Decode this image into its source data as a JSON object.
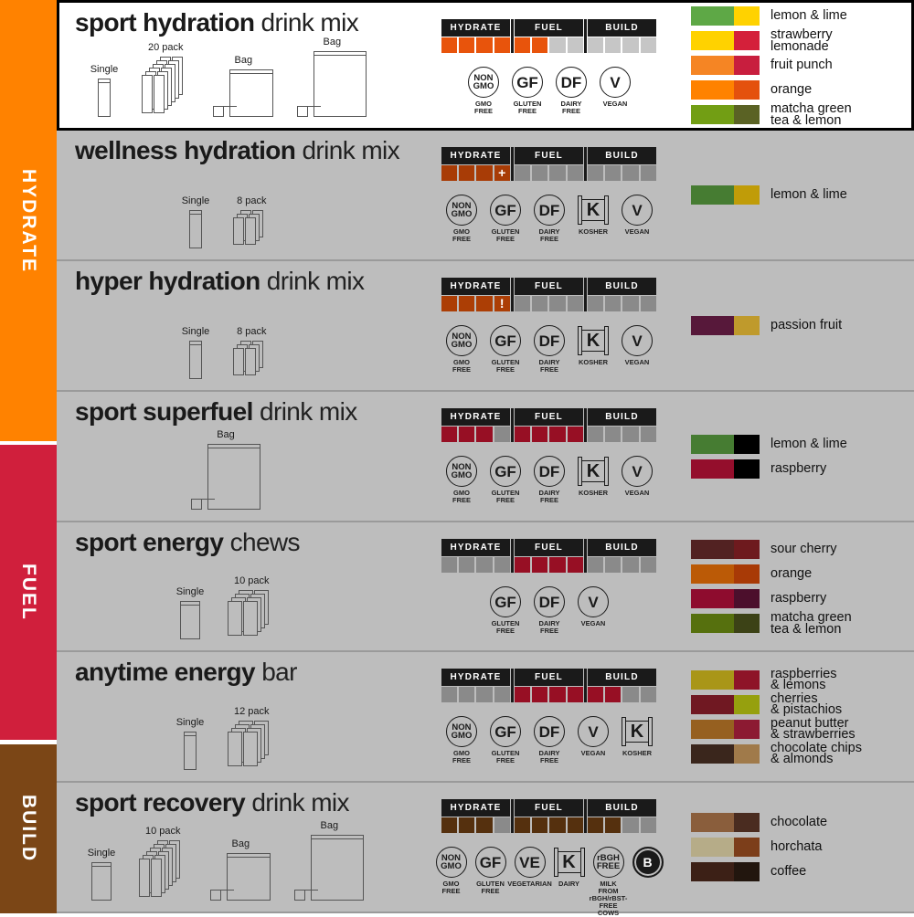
{
  "sidebar": [
    {
      "label": "HYDRATE",
      "color": "#ff8200"
    },
    {
      "label": "FUEL",
      "color": "#d01f3c"
    },
    {
      "label": "BUILD",
      "color": "#7b4616"
    }
  ],
  "meter_labels": [
    "HYDRATE",
    "FUEL",
    "BUILD"
  ],
  "badge_glyphs": {
    "nongmo": "NON\nGMO",
    "gf": "GF",
    "df": "DF",
    "v": "V",
    "k": "K",
    "ve": "VE",
    "rbgh": "rBGH\nFREE",
    "bcorp": "B"
  },
  "products": [
    {
      "bold": "sport hydration",
      "light": " drink mix",
      "highlighted": true,
      "color": "#e8540c",
      "off": "#c6c6c6",
      "meter": [
        [
          "on",
          "on",
          "on",
          "on"
        ],
        [
          "on",
          "on",
          "off",
          "off"
        ],
        [
          "off",
          "off",
          "off",
          "off"
        ]
      ],
      "packages": [
        {
          "label": "Single",
          "kind": "single"
        },
        {
          "label": "20 pack",
          "kind": "pack20"
        },
        {
          "label": "Bag",
          "kind": "bag-small"
        },
        {
          "label": "Bag",
          "kind": "bag-large"
        }
      ],
      "badges": [
        {
          "type": "nongmo",
          "label": "GMO\nFREE"
        },
        {
          "type": "gf",
          "label": "GLUTEN\nFREE"
        },
        {
          "type": "df",
          "label": "DAIRY\nFREE"
        },
        {
          "type": "v",
          "label": "VEGAN"
        }
      ],
      "flavors": [
        {
          "name": "lemon & lime",
          "colors": [
            "#5ea846",
            "#ffd200"
          ]
        },
        {
          "name": "strawberry\nlemonade",
          "colors": [
            "#ffd200",
            "#d4203a"
          ]
        },
        {
          "name": "fruit punch",
          "colors": [
            "#f58524",
            "#c81e3e"
          ]
        },
        {
          "name": "orange",
          "colors": [
            "#ff8200",
            "#e4510d"
          ]
        },
        {
          "name": "matcha green\ntea & lemon",
          "colors": [
            "#729e14",
            "#5a6224"
          ]
        }
      ]
    },
    {
      "bold": "wellness hydration",
      "light": " drink mix",
      "color": "#a83c06",
      "off": "#8a8a8a",
      "meter": [
        [
          "on",
          "on",
          "on",
          "plus"
        ],
        [
          "off",
          "off",
          "off",
          "off"
        ],
        [
          "off",
          "off",
          "off",
          "off"
        ]
      ],
      "packages": [
        {
          "label": "Single",
          "kind": "single"
        },
        {
          "label": "8 pack",
          "kind": "pack8"
        }
      ],
      "badges": [
        {
          "type": "nongmo",
          "label": "GMO\nFREE"
        },
        {
          "type": "gf",
          "label": "GLUTEN\nFREE"
        },
        {
          "type": "df",
          "label": "DAIRY\nFREE"
        },
        {
          "type": "k",
          "label": "KOSHER"
        },
        {
          "type": "v",
          "label": "VEGAN"
        }
      ],
      "flavors": [
        {
          "name": "lemon & lime",
          "colors": [
            "#467c32",
            "#c09c08"
          ]
        }
      ]
    },
    {
      "bold": "hyper hydration",
      "light": " drink mix",
      "color": "#ac3e05",
      "off": "#8a8a8a",
      "meter": [
        [
          "on",
          "on",
          "on",
          "bang"
        ],
        [
          "off",
          "off",
          "off",
          "off"
        ],
        [
          "off",
          "off",
          "off",
          "off"
        ]
      ],
      "packages": [
        {
          "label": "Single",
          "kind": "single"
        },
        {
          "label": "8 pack",
          "kind": "pack8"
        }
      ],
      "badges": [
        {
          "type": "nongmo",
          "label": "GMO\nFREE"
        },
        {
          "type": "gf",
          "label": "GLUTEN\nFREE"
        },
        {
          "type": "df",
          "label": "DAIRY\nFREE"
        },
        {
          "type": "k",
          "label": "KOSHER"
        },
        {
          "type": "v",
          "label": "VEGAN"
        }
      ],
      "flavors": [
        {
          "name": "passion fruit",
          "colors": [
            "#57183a",
            "#bf9a2c"
          ]
        }
      ]
    },
    {
      "bold": "sport superfuel",
      "light": " drink mix",
      "color": "#970f24",
      "off": "#8a8a8a",
      "meter": [
        [
          "on",
          "on",
          "on",
          "off"
        ],
        [
          "on",
          "on",
          "on",
          "on"
        ],
        [
          "off",
          "off",
          "off",
          "off"
        ]
      ],
      "packages": [
        {
          "label": "Bag",
          "kind": "bag-large"
        }
      ],
      "badges": [
        {
          "type": "nongmo",
          "label": "GMO\nFREE"
        },
        {
          "type": "gf",
          "label": "GLUTEN\nFREE"
        },
        {
          "type": "df",
          "label": "DAIRY\nFREE"
        },
        {
          "type": "k",
          "label": "KOSHER"
        },
        {
          "type": "v",
          "label": "VEGAN"
        }
      ],
      "flavors": [
        {
          "name": "lemon & lime",
          "colors": [
            "#467c32",
            "#000000"
          ]
        },
        {
          "name": "raspberry",
          "colors": [
            "#940e2c",
            "#000000"
          ]
        }
      ]
    },
    {
      "bold": "sport energy",
      "light": " chews",
      "color": "#970f24",
      "off": "#8a8a8a",
      "meter": [
        [
          "off",
          "off",
          "off",
          "off"
        ],
        [
          "on",
          "on",
          "on",
          "on"
        ],
        [
          "off",
          "off",
          "off",
          "off"
        ]
      ],
      "packages": [
        {
          "label": "Single",
          "kind": "single-wide"
        },
        {
          "label": "10 pack",
          "kind": "pack10"
        }
      ],
      "badges": [
        {
          "type": "gf",
          "label": "GLUTEN\nFREE"
        },
        {
          "type": "df",
          "label": "DAIRY\nFREE"
        },
        {
          "type": "v",
          "label": "VEGAN"
        }
      ],
      "flavors": [
        {
          "name": "sour cherry",
          "colors": [
            "#522222",
            "#6e1a1e"
          ]
        },
        {
          "name": "orange",
          "colors": [
            "#bb5a06",
            "#a83a06"
          ]
        },
        {
          "name": "raspberry",
          "colors": [
            "#8e0c2e",
            "#4c0f2c"
          ]
        },
        {
          "name": "matcha green\ntea & lemon",
          "colors": [
            "#56700e",
            "#3c4216"
          ]
        }
      ]
    },
    {
      "bold": "anytime energy",
      "light": " bar",
      "color": "#970f24",
      "off": "#8a8a8a",
      "meter": [
        [
          "off",
          "off",
          "off",
          "off"
        ],
        [
          "on",
          "on",
          "on",
          "on"
        ],
        [
          "on",
          "on",
          "off",
          "off"
        ]
      ],
      "packages": [
        {
          "label": "Single",
          "kind": "single"
        },
        {
          "label": "12 pack",
          "kind": "pack12"
        }
      ],
      "badges": [
        {
          "type": "nongmo",
          "label": "GMO\nFREE"
        },
        {
          "type": "gf",
          "label": "GLUTEN\nFREE"
        },
        {
          "type": "df",
          "label": "DAIRY\nFREE"
        },
        {
          "type": "v",
          "label": "VEGAN"
        },
        {
          "type": "k",
          "label": "KOSHER"
        }
      ],
      "flavors": [
        {
          "name": "raspberries\n& lemons",
          "colors": [
            "#a99618",
            "#8e1428"
          ]
        },
        {
          "name": "cherries\n& pistachios",
          "colors": [
            "#701822",
            "#96a00e"
          ]
        },
        {
          "name": "peanut butter\n& strawberries",
          "colors": [
            "#966020",
            "#8c1a32"
          ]
        },
        {
          "name": "chocolate chips\n& almonds",
          "colors": [
            "#3a261c",
            "#a07a4a"
          ]
        }
      ]
    },
    {
      "bold": "sport recovery",
      "light": " drink mix",
      "color": "#55300e",
      "off": "#8a8a8a",
      "meter": [
        [
          "on",
          "on",
          "on",
          "off"
        ],
        [
          "on",
          "on",
          "on",
          "on"
        ],
        [
          "on",
          "on",
          "off",
          "off"
        ]
      ],
      "packages": [
        {
          "label": "Single",
          "kind": "single-wide"
        },
        {
          "label": "10 pack",
          "kind": "pack20"
        },
        {
          "label": "Bag",
          "kind": "bag-small"
        },
        {
          "label": "Bag",
          "kind": "bag-large"
        }
      ],
      "badges": [
        {
          "type": "nongmo",
          "label": "GMO\nFREE"
        },
        {
          "type": "gf",
          "label": "GLUTEN\nFREE"
        },
        {
          "type": "ve",
          "label": "VEGETARIAN"
        },
        {
          "type": "k",
          "label": "DAIRY"
        },
        {
          "type": "rbgh",
          "label": "MILK FROM\nrBGH/rBST-\nFREE COWS"
        },
        {
          "type": "bcorp",
          "label": ""
        }
      ],
      "flavors": [
        {
          "name": "chocolate",
          "colors": [
            "#8a5e3c",
            "#4a2c20"
          ]
        },
        {
          "name": "horchata",
          "colors": [
            "#b6ac88",
            "#7c3e1a"
          ]
        },
        {
          "name": "coffee",
          "colors": [
            "#3c2016",
            "#22160e"
          ]
        }
      ]
    }
  ]
}
